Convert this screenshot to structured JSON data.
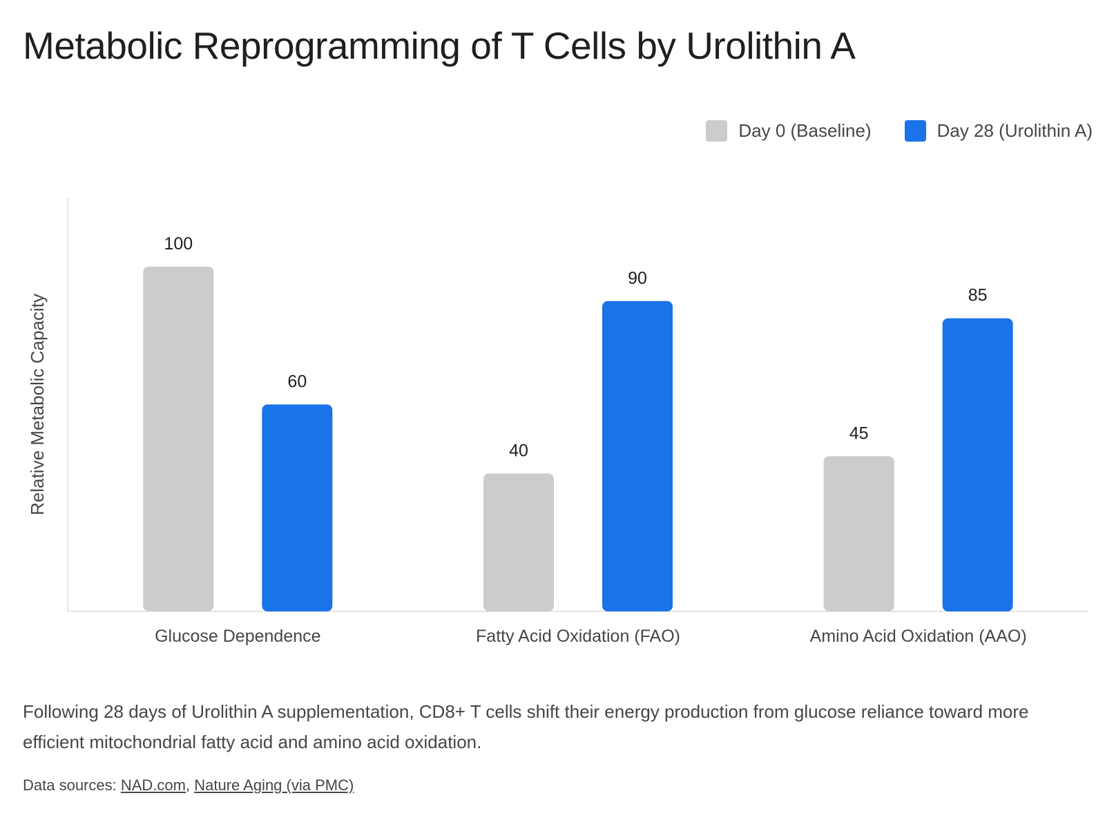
{
  "page": {
    "title": "Metabolic Reprogramming of T Cells by Urolithin A",
    "description": "Following 28 days of Urolithin A supplementation, CD8+ T cells shift their energy production from glucose reliance toward more efficient mitochondrial fatty acid and amino acid oxidation.",
    "sources_label": "Data sources:",
    "sources": [
      {
        "label": "NAD.com"
      },
      {
        "label": "Nature Aging (via PMC)"
      }
    ],
    "sources_separator": ", "
  },
  "chart_data": {
    "type": "bar",
    "categories": [
      "Glucose Dependence",
      "Fatty Acid Oxidation (FAO)",
      "Amino Acid Oxidation (AAO)"
    ],
    "series": [
      {
        "name": "Day 0 (Baseline)",
        "values": [
          100,
          40,
          45
        ],
        "color": "#cccccc"
      },
      {
        "name": "Day 28 (Urolithin A)",
        "values": [
          60,
          90,
          85
        ],
        "color": "#1a73e8"
      }
    ],
    "ylabel": "Relative Metabolic Capacity",
    "xlabel": "",
    "ylim": [
      0,
      120
    ],
    "grid": false,
    "legend_position": "top-right",
    "data_labels": true
  }
}
